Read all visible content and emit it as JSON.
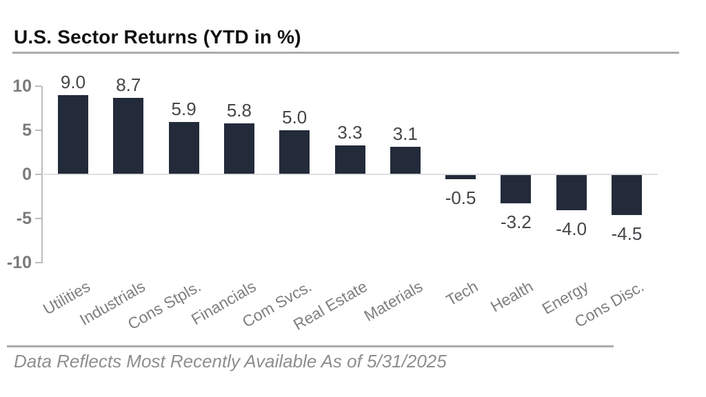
{
  "header": {
    "title": "U.S. Sector Returns (YTD in %)"
  },
  "footer": {
    "note": "Data Reflects Most Recently Available As of 5/31/2025"
  },
  "chart_data": {
    "type": "bar",
    "title": "U.S. Sector Returns (YTD in %)",
    "categories": [
      "Utilities",
      "Industrials",
      "Cons Stpls.",
      "Financials",
      "Com Svcs.",
      "Real Estate",
      "Materials",
      "Tech",
      "Health",
      "Energy",
      "Cons Disc."
    ],
    "values": [
      9.0,
      8.7,
      5.9,
      5.8,
      5.0,
      3.3,
      3.1,
      -0.5,
      -3.2,
      -4.0,
      -4.5
    ],
    "value_labels": [
      "9.0",
      "8.7",
      "5.9",
      "5.8",
      "5.0",
      "3.3",
      "3.1",
      "-0.5",
      "-3.2",
      "-4.0",
      "-4.5"
    ],
    "xlabel": "",
    "ylabel": "",
    "ylim": [
      -10,
      10
    ],
    "y_ticks": [
      {
        "value": 10,
        "label": "10"
      },
      {
        "value": 5,
        "label": "5"
      },
      {
        "value": 0,
        "label": "0"
      },
      {
        "value": -5,
        "label": "-5"
      },
      {
        "value": -10,
        "label": "-10"
      }
    ],
    "grid": "zero-line-only",
    "legend": "none",
    "category_label_rotation_deg": -30
  },
  "colors": {
    "bar": "#232B3A",
    "title_text": "#111111",
    "divider": "#ABABAB",
    "axis_line": "#BCBCBC",
    "zero_gridline": "#DADCE0",
    "y_tick_label": "#7B7B7B",
    "value_label": "#45454A",
    "category_label": "#7F7F7F",
    "footer_text": "#8E8E8E",
    "background": "#FFFFFF"
  }
}
